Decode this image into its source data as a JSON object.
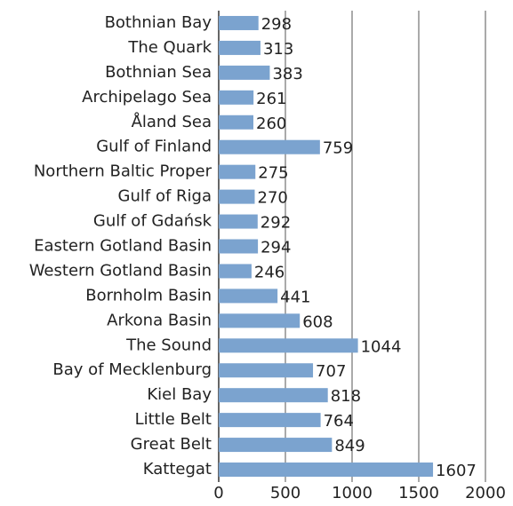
{
  "chart_data": {
    "type": "bar",
    "orientation": "horizontal",
    "categories": [
      "Bothnian Bay",
      "The Quark",
      "Bothnian Sea",
      "Archipelago Sea",
      "Åland Sea",
      "Gulf of Finland",
      "Northern Baltic Proper",
      "Gulf of Riga",
      "Gulf of Gdańsk",
      "Eastern Gotland Basin",
      "Western Gotland Basin",
      "Bornholm Basin",
      "Arkona Basin",
      "The Sound",
      "Bay of Mecklenburg",
      "Kiel Bay",
      "Little Belt",
      "Great Belt",
      "Kattegat"
    ],
    "values": [
      298,
      313,
      383,
      261,
      260,
      759,
      275,
      270,
      292,
      294,
      246,
      441,
      608,
      1044,
      707,
      818,
      764,
      849,
      1607
    ],
    "color": "#7ba3cf",
    "xlim": [
      0,
      2000
    ],
    "xticks": [
      0,
      500,
      1000,
      1500,
      2000
    ],
    "grid": true
  }
}
